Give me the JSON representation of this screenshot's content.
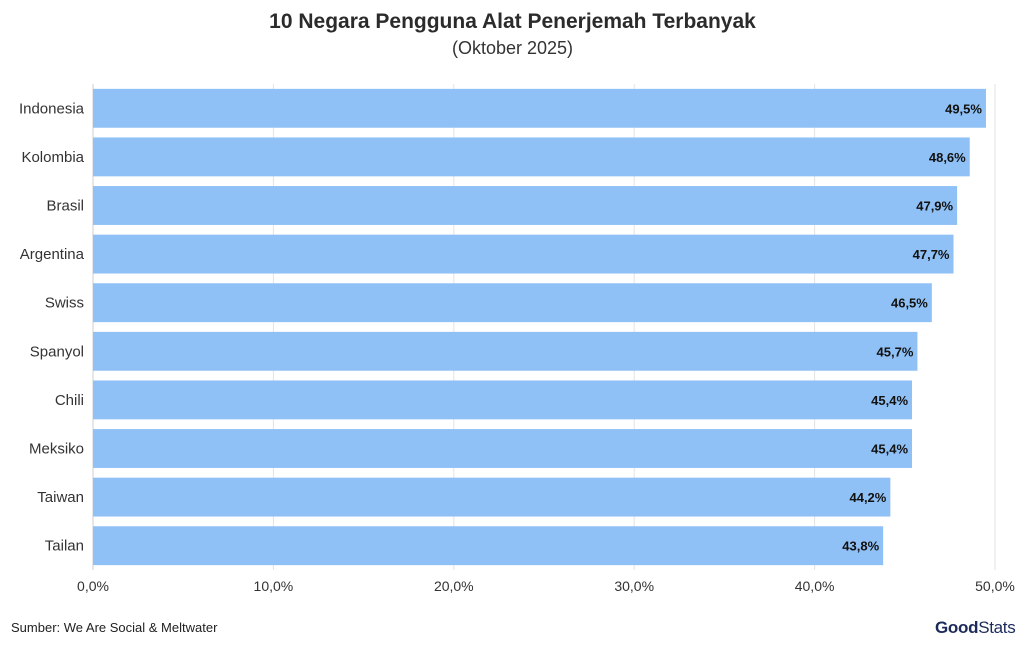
{
  "chart_data": {
    "type": "bar",
    "orientation": "horizontal",
    "title": "10 Negara Pengguna Alat Penerjemah Terbanyak",
    "subtitle": "(Oktober 2025)",
    "categories": [
      "Indonesia",
      "Kolombia",
      "Brasil",
      "Argentina",
      "Swiss",
      "Spanyol",
      "Chili",
      "Meksiko",
      "Taiwan",
      "Tailan"
    ],
    "values": [
      49.5,
      48.6,
      47.9,
      47.7,
      46.5,
      45.7,
      45.4,
      45.4,
      44.2,
      43.8
    ],
    "value_labels": [
      "49,5%",
      "48,6%",
      "47,9%",
      "47,7%",
      "46,5%",
      "45,7%",
      "45,4%",
      "45,4%",
      "44,2%",
      "43,8%"
    ],
    "xlim": [
      0,
      50
    ],
    "xticks": [
      0,
      10,
      20,
      30,
      40,
      50
    ],
    "xtick_labels": [
      "0,0%",
      "10,0%",
      "20,0%",
      "30,0%",
      "40,0%",
      "50,0%"
    ],
    "grid": true,
    "bar_color": "#90c1f6"
  },
  "footer": {
    "source": "Sumber: We Are Social & Meltwater",
    "brand_bold": "Good",
    "brand_thin": "Stats"
  }
}
